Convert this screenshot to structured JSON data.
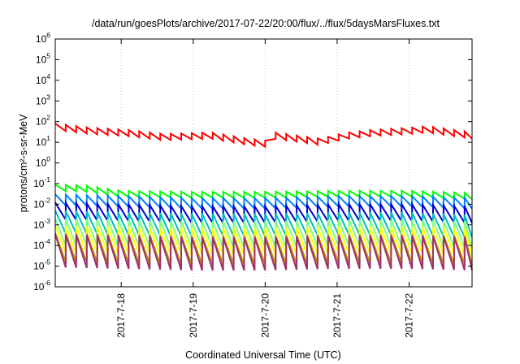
{
  "chart_data": {
    "type": "line",
    "title": "/data/run/goesPlots/archive/2017-07-22/20:00/flux/../flux/5daysMarsFluxes.txt",
    "xlabel": "Coordinated Universal Time (UTC)",
    "ylabel": "protons/cm²-s-sr-MeV",
    "yscale": "log",
    "ylim": [
      1e-06,
      1000000
    ],
    "xlim": [
      "2017-07-17 02:00",
      "2017-07-22 21:00"
    ],
    "grid": "vertical dotted",
    "legend": "none",
    "y_ticks": [
      {
        "value": 1e-06,
        "base": "10",
        "exp": "-6"
      },
      {
        "value": 1e-05,
        "base": "10",
        "exp": "-5"
      },
      {
        "value": 0.0001,
        "base": "10",
        "exp": "-4"
      },
      {
        "value": 0.001,
        "base": "10",
        "exp": "-3"
      },
      {
        "value": 0.01,
        "base": "10",
        "exp": "-2"
      },
      {
        "value": 0.1,
        "base": "10",
        "exp": "-1"
      },
      {
        "value": 1,
        "base": "10",
        "exp": "0"
      },
      {
        "value": 10,
        "base": "10",
        "exp": "1"
      },
      {
        "value": 100,
        "base": "10",
        "exp": "2"
      },
      {
        "value": 1000,
        "base": "10",
        "exp": "3"
      },
      {
        "value": 10000,
        "base": "10",
        "exp": "4"
      },
      {
        "value": 100000,
        "base": "10",
        "exp": "5"
      },
      {
        "value": 1000000,
        "base": "10",
        "exp": "6"
      }
    ],
    "x_ticks": [
      {
        "label": "2017-7-18",
        "value": "2017-07-18 00:00"
      },
      {
        "label": "2017-7-19",
        "value": "2017-07-19 00:00"
      },
      {
        "label": "2017-7-20",
        "value": "2017-07-20 00:00"
      },
      {
        "label": "2017-7-21",
        "value": "2017-07-21 00:00"
      },
      {
        "label": "2017-7-22",
        "value": "2017-07-22 00:00"
      }
    ],
    "series": [
      {
        "color": "#ff0000",
        "style": "sawtooth",
        "period_hours": 3.5,
        "ratio": 0.5,
        "peaks": [
          {
            "x": "2017-07-17 02:00",
            "y": 80
          },
          {
            "x": "2017-07-17 14:00",
            "y": 50
          },
          {
            "x": "2017-07-18 02:00",
            "y": 40
          },
          {
            "x": "2017-07-18 14:00",
            "y": 25
          },
          {
            "x": "2017-07-19 06:00",
            "y": 30
          },
          {
            "x": "2017-07-19 18:00",
            "y": 15
          },
          {
            "x": "2017-07-20 00:00",
            "y": 12
          },
          {
            "x": "2017-07-20 03:00",
            "y": 30
          },
          {
            "x": "2017-07-20 18:00",
            "y": 15
          },
          {
            "x": "2017-07-21 04:00",
            "y": 30
          },
          {
            "x": "2017-07-21 12:00",
            "y": 40
          },
          {
            "x": "2017-07-22 00:00",
            "y": 50
          },
          {
            "x": "2017-07-22 06:00",
            "y": 60
          },
          {
            "x": "2017-07-22 21:00",
            "y": 30
          }
        ]
      },
      {
        "color": "#00ff00",
        "style": "sawtooth",
        "period_hours": 3.5,
        "ratio": 0.5,
        "peaks": [
          {
            "x": "2017-07-17 02:00",
            "y": 0.09
          },
          {
            "x": "2017-07-17 12:00",
            "y": 0.08
          },
          {
            "x": "2017-07-18 00:00",
            "y": 0.045
          },
          {
            "x": "2017-07-19 00:00",
            "y": 0.04
          },
          {
            "x": "2017-07-20 00:00",
            "y": 0.04
          },
          {
            "x": "2017-07-21 00:00",
            "y": 0.045
          },
          {
            "x": "2017-07-22 00:00",
            "y": 0.045
          },
          {
            "x": "2017-07-22 21:00",
            "y": 0.035
          }
        ]
      },
      {
        "color": "#0080ff",
        "style": "sawtooth",
        "period_hours": 3.5,
        "ratio": 0.3,
        "peaks": [
          {
            "x": "2017-07-17 02:00",
            "y": 0.03
          },
          {
            "x": "2017-07-18 00:00",
            "y": 0.025
          },
          {
            "x": "2017-07-19 00:00",
            "y": 0.02
          },
          {
            "x": "2017-07-20 00:00",
            "y": 0.02
          },
          {
            "x": "2017-07-21 00:00",
            "y": 0.025
          },
          {
            "x": "2017-07-22 00:00",
            "y": 0.025
          },
          {
            "x": "2017-07-22 21:00",
            "y": 0.02
          }
        ]
      },
      {
        "color": "#0000cc",
        "style": "sawtooth",
        "period_hours": 3.5,
        "ratio": 0.15,
        "peaks": [
          {
            "x": "2017-07-17 02:00",
            "y": 0.012
          },
          {
            "x": "2017-07-18 00:00",
            "y": 0.01
          },
          {
            "x": "2017-07-19 00:00",
            "y": 0.008
          },
          {
            "x": "2017-07-20 00:00",
            "y": 0.008
          },
          {
            "x": "2017-07-21 00:00",
            "y": 0.01
          },
          {
            "x": "2017-07-22 00:00",
            "y": 0.01
          },
          {
            "x": "2017-07-22 21:00",
            "y": 0.008
          }
        ]
      },
      {
        "color": "#00bfbf",
        "style": "sawtooth",
        "period_hours": 3.5,
        "ratio": 0.08,
        "peaks": [
          {
            "x": "2017-07-17 02:00",
            "y": 0.005
          },
          {
            "x": "2017-07-18 00:00",
            "y": 0.004
          },
          {
            "x": "2017-07-19 00:00",
            "y": 0.0035
          },
          {
            "x": "2017-07-20 00:00",
            "y": 0.0035
          },
          {
            "x": "2017-07-21 00:00",
            "y": 0.004
          },
          {
            "x": "2017-07-22 00:00",
            "y": 0.004
          },
          {
            "x": "2017-07-22 21:00",
            "y": 0.003
          }
        ]
      },
      {
        "color": "#80ff80",
        "style": "sawtooth",
        "period_hours": 3.5,
        "ratio": 0.05,
        "peaks": [
          {
            "x": "2017-07-17 02:00",
            "y": 0.002
          },
          {
            "x": "2017-07-18 00:00",
            "y": 0.0018
          },
          {
            "x": "2017-07-19 00:00",
            "y": 0.0015
          },
          {
            "x": "2017-07-20 00:00",
            "y": 0.0015
          },
          {
            "x": "2017-07-21 00:00",
            "y": 0.0018
          },
          {
            "x": "2017-07-22 00:00",
            "y": 0.0018
          },
          {
            "x": "2017-07-22 21:00",
            "y": 0.0015
          }
        ]
      },
      {
        "color": "#ffff00",
        "style": "sawtooth",
        "period_hours": 3.5,
        "ratio": 0.05,
        "peaks": [
          {
            "x": "2017-07-17 02:00",
            "y": 0.0009
          },
          {
            "x": "2017-07-18 00:00",
            "y": 0.0008
          },
          {
            "x": "2017-07-19 00:00",
            "y": 0.0007
          },
          {
            "x": "2017-07-20 00:00",
            "y": 0.0007
          },
          {
            "x": "2017-07-21 00:00",
            "y": 0.0008
          },
          {
            "x": "2017-07-22 00:00",
            "y": 0.0008
          },
          {
            "x": "2017-07-22 21:00",
            "y": 0.0007
          }
        ]
      },
      {
        "color": "#bb9900",
        "style": "sawtooth",
        "period_hours": 3.5,
        "ratio": 0.04,
        "peaks": [
          {
            "x": "2017-07-17 02:00",
            "y": 0.0004
          },
          {
            "x": "2017-07-18 00:00",
            "y": 0.00035
          },
          {
            "x": "2017-07-19 00:00",
            "y": 0.0003
          },
          {
            "x": "2017-07-20 00:00",
            "y": 0.0003
          },
          {
            "x": "2017-07-21 00:00",
            "y": 0.00035
          },
          {
            "x": "2017-07-22 00:00",
            "y": 0.00035
          },
          {
            "x": "2017-07-22 21:00",
            "y": 0.0003
          }
        ]
      },
      {
        "color": "#a0306a",
        "style": "sawtooth",
        "period_hours": 3.5,
        "ratio": 0.025,
        "peaks": [
          {
            "x": "2017-07-17 02:00",
            "y": 0.00035
          },
          {
            "x": "2017-07-18 00:00",
            "y": 0.0003
          },
          {
            "x": "2017-07-19 00:00",
            "y": 0.00025
          },
          {
            "x": "2017-07-20 00:00",
            "y": 0.00025
          },
          {
            "x": "2017-07-21 00:00",
            "y": 0.0003
          },
          {
            "x": "2017-07-22 00:00",
            "y": 0.0003
          },
          {
            "x": "2017-07-22 21:00",
            "y": 0.00025
          }
        ]
      }
    ]
  }
}
